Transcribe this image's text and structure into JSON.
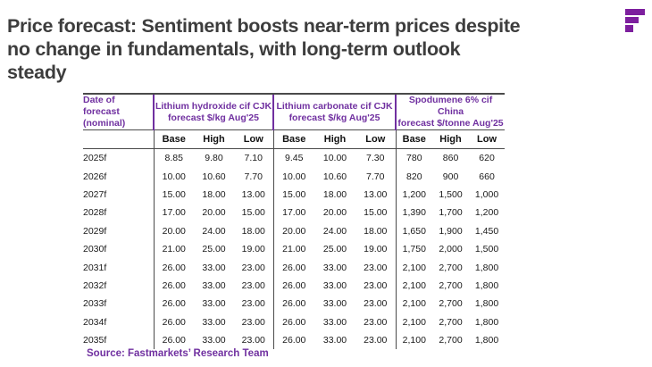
{
  "title": {
    "lines": [
      "Price forecast: Sentiment boosts near-term prices despite",
      "no change in fundamentals, with long-term outlook",
      "steady"
    ]
  },
  "logo": {
    "name": "fastmarkets-logo"
  },
  "colors": {
    "accent_purple": "#7030a0",
    "logo_purple": "#7d1f9e",
    "title_gray": "#3d3d3d",
    "rule_dark": "#4a4a4a"
  },
  "table": {
    "date_header_line1": "Date of forecast",
    "date_header_line2": "(nominal)",
    "groups": [
      {
        "title_line1": "Lithium hydroxide cif CJK",
        "title_line2": "forecast $/kg Aug'25"
      },
      {
        "title_line1": "Lithium carbonate cif CJK",
        "title_line2": "forecast $/kg Aug'25"
      },
      {
        "title_line1": "Spodumene 6% cif China",
        "title_line2": "forecast $/tonne Aug'25"
      }
    ],
    "subheaders": [
      "Base",
      "High",
      "Low"
    ],
    "rows": [
      {
        "year": "2025f",
        "values": [
          "8.85",
          "9.80",
          "7.10",
          "9.45",
          "10.00",
          "7.30",
          "780",
          "860",
          "620"
        ]
      },
      {
        "year": "2026f",
        "values": [
          "10.00",
          "10.60",
          "7.70",
          "10.00",
          "10.60",
          "7.70",
          "820",
          "900",
          "660"
        ]
      },
      {
        "year": "2027f",
        "values": [
          "15.00",
          "18.00",
          "13.00",
          "15.00",
          "18.00",
          "13.00",
          "1,200",
          "1,500",
          "1,000"
        ]
      },
      {
        "year": "2028f",
        "values": [
          "17.00",
          "20.00",
          "15.00",
          "17.00",
          "20.00",
          "15.00",
          "1,390",
          "1,700",
          "1,200"
        ]
      },
      {
        "year": "2029f",
        "values": [
          "20.00",
          "24.00",
          "18.00",
          "20.00",
          "24.00",
          "18.00",
          "1,650",
          "1,900",
          "1,450"
        ]
      },
      {
        "year": "2030f",
        "values": [
          "21.00",
          "25.00",
          "19.00",
          "21.00",
          "25.00",
          "19.00",
          "1,750",
          "2,000",
          "1,500"
        ]
      },
      {
        "year": "2031f",
        "values": [
          "26.00",
          "33.00",
          "23.00",
          "26.00",
          "33.00",
          "23.00",
          "2,100",
          "2,700",
          "1,800"
        ]
      },
      {
        "year": "2032f",
        "values": [
          "26.00",
          "33.00",
          "23.00",
          "26.00",
          "33.00",
          "23.00",
          "2,100",
          "2,700",
          "1,800"
        ]
      },
      {
        "year": "2033f",
        "values": [
          "26.00",
          "33.00",
          "23.00",
          "26.00",
          "33.00",
          "23.00",
          "2,100",
          "2,700",
          "1,800"
        ]
      },
      {
        "year": "2034f",
        "values": [
          "26.00",
          "33.00",
          "23.00",
          "26.00",
          "33.00",
          "23.00",
          "2,100",
          "2,700",
          "1,800"
        ]
      },
      {
        "year": "2035f",
        "values": [
          "26.00",
          "33.00",
          "23.00",
          "26.00",
          "33.00",
          "23.00",
          "2,100",
          "2,700",
          "1,800"
        ]
      }
    ]
  },
  "source": "Source: Fastmarkets’ Research Team"
}
